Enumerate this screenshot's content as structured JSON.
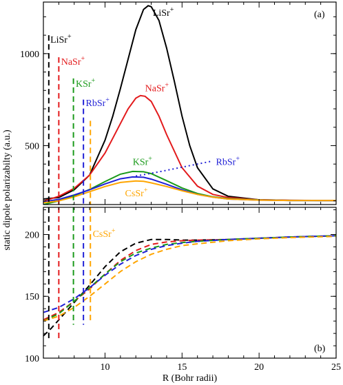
{
  "chart_data": [
    {
      "type": "line",
      "panel_label": "(a)",
      "xlabel": "",
      "ylabel": "static dipole polarizabilty (a.u.)",
      "xlim": [
        6.0,
        25.0
      ],
      "ylim": [
        180,
        1280
      ],
      "yticks": [
        500,
        1000
      ],
      "colors": {
        "LiSr": "#000000",
        "NaSr": "#e31a1c",
        "KSr": "#1a9a1a",
        "RbSr": "#1f1fd6",
        "CsSr": "#ffa500"
      },
      "series": [
        {
          "name": "LiSr+",
          "key": "LiSr",
          "style": "solid",
          "x": [
            6.0,
            7.0,
            8.0,
            9.0,
            10.0,
            10.5,
            11.0,
            11.5,
            12.0,
            12.5,
            12.8,
            13.0,
            13.5,
            14.0,
            14.5,
            15.0,
            15.5,
            16.0,
            17.0,
            18.0,
            20.0,
            22.0,
            24.0,
            25.0
          ],
          "y": [
            210,
            218,
            260,
            340,
            530,
            660,
            810,
            970,
            1130,
            1240,
            1260,
            1255,
            1180,
            1030,
            850,
            660,
            500,
            380,
            265,
            225,
            206,
            203,
            202,
            202
          ]
        },
        {
          "name": "NaSr+",
          "key": "NaSr",
          "style": "solid",
          "x": [
            6.0,
            7.0,
            8.0,
            9.0,
            10.0,
            10.5,
            11.0,
            11.5,
            12.0,
            12.3,
            12.6,
            13.0,
            13.5,
            14.0,
            15.0,
            16.0,
            17.0,
            18.0,
            20.0,
            22.0,
            25.0
          ],
          "y": [
            198,
            225,
            268,
            340,
            460,
            540,
            620,
            700,
            758,
            772,
            768,
            740,
            660,
            560,
            380,
            280,
            235,
            218,
            206,
            203,
            202
          ]
        },
        {
          "name": "KSr+",
          "key": "KSr",
          "style": "solid",
          "x": [
            6.0,
            7.0,
            8.0,
            9.0,
            10.0,
            11.0,
            11.8,
            12.5,
            13.0,
            14.0,
            15.0,
            16.0,
            17.0,
            18.0,
            20.0,
            22.0,
            25.0
          ],
          "y": [
            180,
            200,
            228,
            262,
            305,
            345,
            360,
            358,
            348,
            310,
            270,
            240,
            222,
            212,
            205,
            202,
            202
          ]
        },
        {
          "name": "RbSr+",
          "key": "RbSr",
          "style": "solid",
          "x": [
            6.0,
            7.0,
            8.0,
            9.0,
            10.0,
            11.0,
            11.8,
            12.5,
            13.0,
            14.0,
            15.0,
            16.0,
            17.0,
            18.0,
            20.0,
            22.0,
            25.0
          ],
          "y": [
            195,
            208,
            232,
            260,
            292,
            320,
            330,
            328,
            318,
            290,
            260,
            235,
            220,
            210,
            204,
            202,
            202
          ]
        },
        {
          "name": "CsSr+",
          "key": "CsSr",
          "style": "solid",
          "x": [
            6.0,
            7.0,
            8.0,
            9.0,
            10.0,
            11.0,
            12.0,
            12.5,
            13.0,
            14.0,
            15.0,
            16.0,
            17.0,
            18.0,
            20.0,
            22.0,
            25.0
          ],
          "y": [
            190,
            200,
            222,
            250,
            278,
            300,
            308,
            306,
            298,
            278,
            255,
            235,
            220,
            210,
            204,
            202,
            202
          ]
        },
        {
          "name": "RbSr+",
          "key": "RbSr",
          "style": "dotted",
          "x": [
            12.0,
            13.0,
            14.0,
            15.0,
            16.0,
            17.0
          ],
          "y": [
            335,
            350,
            366,
            383,
            400,
            417
          ]
        }
      ],
      "vlines": [
        {
          "key": "LiSr",
          "x": 6.35,
          "y_top": 1100
        },
        {
          "key": "NaSr",
          "x": 7.0,
          "y_top": 980
        },
        {
          "key": "KSr",
          "x": 7.95,
          "y_top": 865
        },
        {
          "key": "RbSr",
          "x": 8.6,
          "y_top": 750
        },
        {
          "key": "CsSr",
          "x": 9.05,
          "y_top": 635
        }
      ],
      "labels": [
        {
          "key": "LiSr",
          "text": "LiSr",
          "sup": "+",
          "x": 6.45,
          "y": 1060
        },
        {
          "key": "NaSr",
          "text": "NaSr",
          "sup": "+",
          "x": 7.15,
          "y": 940
        },
        {
          "key": "KSr",
          "text": "KSr",
          "sup": "+",
          "x": 8.1,
          "y": 820
        },
        {
          "key": "RbSr",
          "text": "RbSr",
          "sup": "+",
          "x": 8.75,
          "y": 715
        },
        {
          "key": "LiSr",
          "text": "LiSr",
          "sup": "+",
          "x": 13.1,
          "y": 1205
        },
        {
          "key": "NaSr",
          "text": "NaSr",
          "sup": "+",
          "x": 12.6,
          "y": 795
        },
        {
          "key": "KSr",
          "text": "KSr",
          "sup": "+",
          "x": 11.8,
          "y": 395
        },
        {
          "key": "RbSr",
          "text": "RbSr",
          "sup": "+",
          "x": 17.2,
          "y": 395
        },
        {
          "key": "CsSr",
          "text": "CsSr",
          "sup": "+",
          "x": 11.3,
          "y": 225
        }
      ]
    },
    {
      "type": "line",
      "panel_label": "(b)",
      "xlabel": "R (Bohr radii)",
      "ylabel": "",
      "xlim": [
        6.0,
        25.0
      ],
      "ylim": [
        100,
        222
      ],
      "xticks": [
        10,
        15,
        20,
        25
      ],
      "yticks": [
        100,
        150,
        200
      ],
      "series": [
        {
          "name": "LiSr+",
          "key": "LiSr",
          "style": "dashed",
          "x": [
            6.0,
            6.5,
            7.0,
            8.0,
            9.0,
            10.0,
            11.0,
            12.0,
            13.0,
            14.0,
            15.0,
            16.0,
            18.0,
            20.0,
            22.0,
            25.0
          ],
          "y": [
            118,
            124,
            131,
            145,
            159,
            174,
            186,
            193,
            196,
            196,
            195.5,
            195.5,
            196,
            197,
            198,
            199
          ]
        },
        {
          "name": "NaSr+",
          "key": "NaSr",
          "style": "dashed",
          "x": [
            6.0,
            7.0,
            8.0,
            9.0,
            10.0,
            11.0,
            12.0,
            13.0,
            14.0,
            15.0,
            16.0,
            18.0,
            20.0,
            22.0,
            25.0
          ],
          "y": [
            131,
            137,
            146,
            156,
            168,
            179,
            187,
            192,
            194,
            195,
            195.5,
            196,
            197,
            198,
            199
          ]
        },
        {
          "name": "KSr+",
          "key": "KSr",
          "style": "dashed",
          "x": [
            6.0,
            7.0,
            8.0,
            9.0,
            10.0,
            11.0,
            12.0,
            13.0,
            14.0,
            15.0,
            16.0,
            18.0,
            20.0,
            22.0,
            25.0
          ],
          "y": [
            130,
            136,
            146,
            157,
            168,
            178,
            185,
            189,
            192,
            193.5,
            194.5,
            196,
            197,
            198,
            199
          ]
        },
        {
          "name": "RbSr+",
          "key": "RbSr",
          "style": "dashed",
          "x": [
            6.0,
            7.0,
            8.0,
            9.0,
            10.0,
            11.0,
            12.0,
            13.0,
            14.0,
            15.0,
            16.0,
            18.0,
            20.0,
            22.0,
            25.0
          ],
          "y": [
            137,
            141,
            148,
            157,
            167,
            176,
            183,
            188,
            191,
            193,
            194.5,
            196,
            197,
            198,
            199
          ]
        },
        {
          "name": "CsSr+",
          "key": "CsSr",
          "style": "dashed",
          "x": [
            6.0,
            7.0,
            8.0,
            9.0,
            10.0,
            11.0,
            12.0,
            13.0,
            14.0,
            15.0,
            16.0,
            18.0,
            20.0,
            22.0,
            25.0
          ],
          "y": [
            130,
            134,
            141,
            150,
            160,
            170,
            178,
            184,
            188,
            191,
            192.5,
            195,
            196.5,
            197.5,
            198.5
          ]
        }
      ],
      "vlines": [
        {
          "key": "LiSr",
          "x": 6.35,
          "y_bottom": 115
        },
        {
          "key": "NaSr",
          "x": 7.0,
          "y_bottom": 115
        },
        {
          "key": "KSr",
          "x": 7.95,
          "y_bottom": 127
        },
        {
          "key": "RbSr",
          "x": 8.6,
          "y_bottom": 127
        },
        {
          "key": "CsSr",
          "x": 9.05,
          "y_bottom": 130
        }
      ],
      "labels": [
        {
          "key": "CsSr",
          "text": "CsSr",
          "sup": "+",
          "x": 9.2,
          "y": 198
        }
      ]
    }
  ]
}
